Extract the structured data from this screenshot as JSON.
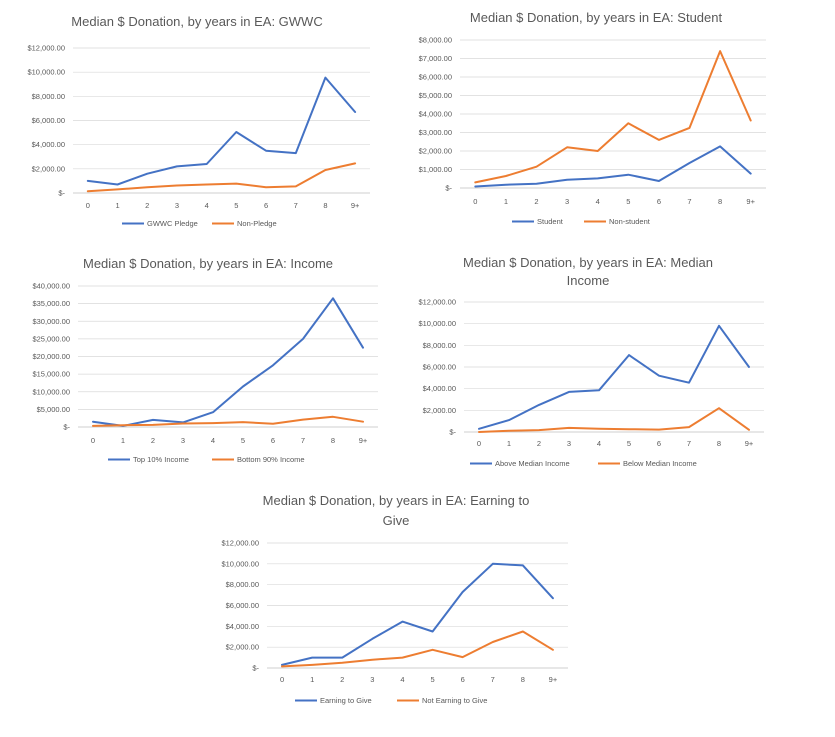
{
  "colors": {
    "series_a": "#4472c4",
    "series_b": "#ed7d31"
  },
  "x_categories": [
    "0",
    "1",
    "2",
    "3",
    "4",
    "5",
    "6",
    "7",
    "8",
    "9+"
  ],
  "chart_data": [
    {
      "type": "line",
      "title_lines": [
        "Median $ Donation, by years in EA: GWWC"
      ],
      "categories": [
        "0",
        "1",
        "2",
        "3",
        "4",
        "5",
        "6",
        "7",
        "8",
        "9+"
      ],
      "ylim": [
        0,
        12000
      ],
      "y_ticks": [
        0,
        2000,
        4000,
        6000,
        8000,
        10000,
        12000
      ],
      "y_tick_labels": [
        "$-",
        "$2,000.00",
        "$4,000.00",
        "$6,000.00",
        "$8,000.00",
        "$10,000.00",
        "$12,000.00"
      ],
      "legend_position": "bottom",
      "series": [
        {
          "name": "GWWC Pledge",
          "values": [
            1000,
            700,
            1600,
            2200,
            2400,
            5050,
            3500,
            3300,
            9550,
            6700
          ]
        },
        {
          "name": "Non-Pledge",
          "values": [
            150,
            300,
            480,
            620,
            700,
            780,
            480,
            550,
            1900,
            2450
          ]
        }
      ]
    },
    {
      "type": "line",
      "title_lines": [
        "Median $ Donation, by years in EA: Student"
      ],
      "categories": [
        "0",
        "1",
        "2",
        "3",
        "4",
        "5",
        "6",
        "7",
        "8",
        "9+"
      ],
      "ylim": [
        0,
        8000
      ],
      "y_ticks": [
        0,
        1000,
        2000,
        3000,
        4000,
        5000,
        6000,
        7000,
        8000
      ],
      "y_tick_labels": [
        "$-",
        "$1,000.00",
        "$2,000.00",
        "$3,000.00",
        "$4,000.00",
        "$5,000.00",
        "$6,000.00",
        "$7,000.00",
        "$8,000.00"
      ],
      "legend_position": "bottom",
      "series": [
        {
          "name": "Student",
          "values": [
            80,
            180,
            230,
            450,
            520,
            720,
            380,
            1350,
            2250,
            780
          ]
        },
        {
          "name": "Non-student",
          "values": [
            300,
            650,
            1150,
            2200,
            2000,
            3500,
            2600,
            3250,
            7400,
            3650
          ]
        }
      ]
    },
    {
      "type": "line",
      "title_lines": [
        "Median $ Donation, by years in EA: Income"
      ],
      "categories": [
        "0",
        "1",
        "2",
        "3",
        "4",
        "5",
        "6",
        "7",
        "8",
        "9+"
      ],
      "ylim": [
        0,
        40000
      ],
      "y_ticks": [
        0,
        5000,
        10000,
        15000,
        20000,
        25000,
        30000,
        35000,
        40000
      ],
      "y_tick_labels": [
        "$-",
        "$5,000.00",
        "$10,000.00",
        "$15,000.00",
        "$20,000.00",
        "$25,000.00",
        "$30,000.00",
        "$35,000.00",
        "$40,000.00"
      ],
      "legend_position": "bottom",
      "series": [
        {
          "name": "Top 10% Income",
          "values": [
            1500,
            300,
            2000,
            1300,
            4200,
            11500,
            17500,
            25000,
            36500,
            22500
          ]
        },
        {
          "name": "Bottom 90% Income",
          "values": [
            300,
            500,
            600,
            1000,
            1100,
            1400,
            900,
            2100,
            2900,
            1500
          ]
        }
      ]
    },
    {
      "type": "line",
      "title_lines": [
        "Median $ Donation, by years in EA: Median",
        "Income"
      ],
      "categories": [
        "0",
        "1",
        "2",
        "3",
        "4",
        "5",
        "6",
        "7",
        "8",
        "9+"
      ],
      "ylim": [
        0,
        12000
      ],
      "y_ticks": [
        0,
        2000,
        4000,
        6000,
        8000,
        10000,
        12000
      ],
      "y_tick_labels": [
        "$-",
        "$2,000.00",
        "$4,000.00",
        "$6,000.00",
        "$8,000.00",
        "$10,000.00",
        "$12,000.00"
      ],
      "legend_position": "bottom",
      "series": [
        {
          "name": "Above Median Income",
          "values": [
            300,
            1100,
            2500,
            3700,
            3850,
            7100,
            5200,
            4550,
            9800,
            6000
          ]
        },
        {
          "name": "Below Median Income",
          "values": [
            0,
            120,
            180,
            380,
            300,
            260,
            220,
            450,
            2200,
            200
          ]
        }
      ]
    },
    {
      "type": "line",
      "title_lines": [
        "Median $ Donation, by years in EA: Earning to",
        "Give"
      ],
      "categories": [
        "0",
        "1",
        "2",
        "3",
        "4",
        "5",
        "6",
        "7",
        "8",
        "9+"
      ],
      "ylim": [
        0,
        12000
      ],
      "y_ticks": [
        0,
        2000,
        4000,
        6000,
        8000,
        10000,
        12000
      ],
      "y_tick_labels": [
        "$-",
        "$2,000.00",
        "$4,000.00",
        "$6,000.00",
        "$8,000.00",
        "$10,000.00",
        "$12,000.00"
      ],
      "legend_position": "bottom",
      "series": [
        {
          "name": "Earning to Give",
          "values": [
            300,
            1000,
            1000,
            2800,
            4450,
            3500,
            7300,
            10000,
            9850,
            6700
          ]
        },
        {
          "name": "Not Earning to Give",
          "values": [
            150,
            300,
            500,
            800,
            1000,
            1750,
            1050,
            2500,
            3500,
            1750
          ]
        }
      ]
    }
  ]
}
